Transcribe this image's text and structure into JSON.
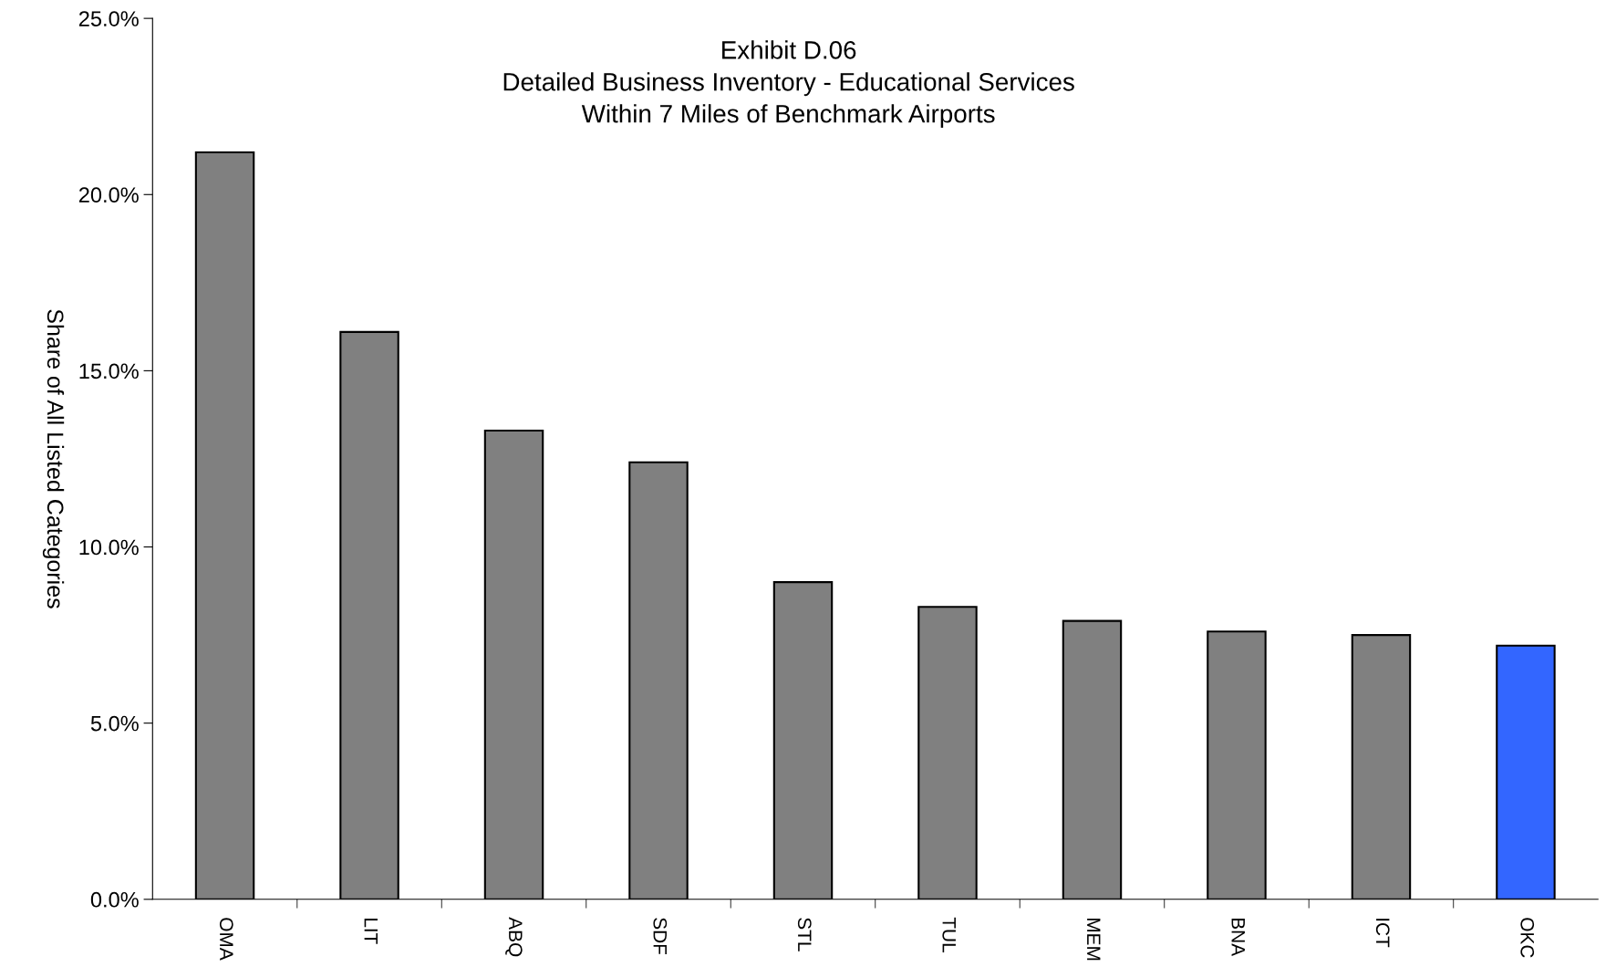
{
  "chart_data": {
    "type": "bar",
    "title": "Exhibit D.06\nDetailed Business Inventory - Educational Services\nWithin 7 Miles of Benchmark Airports",
    "ylabel": "Share of All Listed Categories",
    "categories": [
      "OMA",
      "LIT",
      "ABQ",
      "SDF",
      "STL",
      "TUL",
      "MEM",
      "BNA",
      "ICT",
      "OKC"
    ],
    "values": [
      21.2,
      16.1,
      13.3,
      12.4,
      9.0,
      8.3,
      7.9,
      7.6,
      7.5,
      7.2
    ],
    "colors": [
      "#808080",
      "#808080",
      "#808080",
      "#808080",
      "#808080",
      "#808080",
      "#808080",
      "#808080",
      "#808080",
      "#3366ff"
    ],
    "ylim": [
      0,
      25
    ],
    "yticks": [
      {
        "value": 0,
        "label": "0.0%"
      },
      {
        "value": 5,
        "label": "5.0%"
      },
      {
        "value": 10,
        "label": "10.0%"
      },
      {
        "value": 15,
        "label": "15.0%"
      },
      {
        "value": 20,
        "label": "20.0%"
      },
      {
        "value": 25,
        "label": "25.0%"
      }
    ],
    "grid": false,
    "legend": false
  }
}
